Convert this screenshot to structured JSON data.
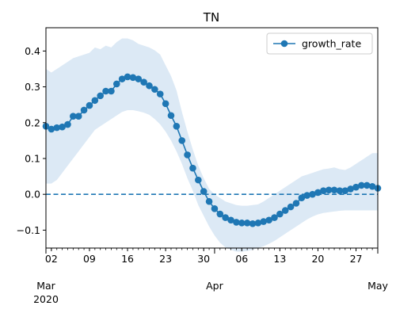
{
  "chart_data": {
    "type": "line",
    "title": "TN",
    "xlabel": "",
    "ylabel": "",
    "xlim": [
      "2020-03-01",
      "2020-05-01"
    ],
    "ylim": [
      -0.15,
      0.465
    ],
    "yticks": [
      -0.1,
      0.0,
      0.1,
      0.2,
      0.3,
      0.4
    ],
    "ytick_labels": [
      "−0.1",
      "0.0",
      "0.1",
      "0.2",
      "0.3",
      "0.4"
    ],
    "xticks_minor": [
      {
        "date": "2020-03-02",
        "label": "02"
      },
      {
        "date": "2020-03-09",
        "label": "09"
      },
      {
        "date": "2020-03-16",
        "label": "16"
      },
      {
        "date": "2020-03-23",
        "label": "23"
      },
      {
        "date": "2020-03-30",
        "label": "30"
      },
      {
        "date": "2020-04-06",
        "label": "06"
      },
      {
        "date": "2020-04-13",
        "label": "13"
      },
      {
        "date": "2020-04-20",
        "label": "20"
      },
      {
        "date": "2020-04-27",
        "label": "27"
      }
    ],
    "xticks_major": [
      {
        "date": "2020-03-01",
        "label": "Mar",
        "sublabel": "2020"
      },
      {
        "date": "2020-04-01",
        "label": "Apr",
        "sublabel": ""
      },
      {
        "date": "2020-05-01",
        "label": "May",
        "sublabel": ""
      }
    ],
    "legend": {
      "position": "upper right",
      "entries": [
        "growth_rate"
      ]
    },
    "reference_line": {
      "y": 0.0,
      "style": "dashed"
    },
    "colors": {
      "line": "#1f77b4",
      "band": "#dce9f5"
    },
    "series": [
      {
        "name": "growth_rate",
        "x": [
          "2020-03-01",
          "2020-03-02",
          "2020-03-03",
          "2020-03-04",
          "2020-03-05",
          "2020-03-06",
          "2020-03-07",
          "2020-03-08",
          "2020-03-09",
          "2020-03-10",
          "2020-03-11",
          "2020-03-12",
          "2020-03-13",
          "2020-03-14",
          "2020-03-15",
          "2020-03-16",
          "2020-03-17",
          "2020-03-18",
          "2020-03-19",
          "2020-03-20",
          "2020-03-21",
          "2020-03-22",
          "2020-03-23",
          "2020-03-24",
          "2020-03-25",
          "2020-03-26",
          "2020-03-27",
          "2020-03-28",
          "2020-03-29",
          "2020-03-30",
          "2020-03-31",
          "2020-04-01",
          "2020-04-02",
          "2020-04-03",
          "2020-04-04",
          "2020-04-05",
          "2020-04-06",
          "2020-04-07",
          "2020-04-08",
          "2020-04-09",
          "2020-04-10",
          "2020-04-11",
          "2020-04-12",
          "2020-04-13",
          "2020-04-14",
          "2020-04-15",
          "2020-04-16",
          "2020-04-17",
          "2020-04-18",
          "2020-04-19",
          "2020-04-20",
          "2020-04-21",
          "2020-04-22",
          "2020-04-23",
          "2020-04-24",
          "2020-04-25",
          "2020-04-26",
          "2020-04-27",
          "2020-04-28",
          "2020-04-29",
          "2020-04-30",
          "2020-05-01"
        ],
        "y": [
          0.19,
          0.182,
          0.186,
          0.188,
          0.195,
          0.218,
          0.218,
          0.235,
          0.248,
          0.262,
          0.275,
          0.288,
          0.288,
          0.308,
          0.322,
          0.328,
          0.326,
          0.322,
          0.313,
          0.303,
          0.293,
          0.28,
          0.253,
          0.22,
          0.19,
          0.15,
          0.11,
          0.073,
          0.04,
          0.008,
          -0.02,
          -0.04,
          -0.055,
          -0.065,
          -0.072,
          -0.078,
          -0.08,
          -0.08,
          -0.082,
          -0.08,
          -0.076,
          -0.072,
          -0.065,
          -0.055,
          -0.045,
          -0.035,
          -0.025,
          -0.01,
          -0.003,
          0.0,
          0.005,
          0.01,
          0.012,
          0.012,
          0.01,
          0.01,
          0.015,
          0.02,
          0.025,
          0.025,
          0.022,
          0.017
        ],
        "lower": [
          0.03,
          0.03,
          0.04,
          0.06,
          0.08,
          0.1,
          0.12,
          0.14,
          0.16,
          0.18,
          0.19,
          0.2,
          0.21,
          0.22,
          0.23,
          0.235,
          0.235,
          0.232,
          0.228,
          0.222,
          0.21,
          0.195,
          0.175,
          0.15,
          0.12,
          0.085,
          0.045,
          0.01,
          -0.03,
          -0.06,
          -0.09,
          -0.115,
          -0.135,
          -0.148,
          -0.155,
          -0.16,
          -0.16,
          -0.158,
          -0.155,
          -0.15,
          -0.145,
          -0.138,
          -0.13,
          -0.12,
          -0.11,
          -0.1,
          -0.09,
          -0.08,
          -0.07,
          -0.062,
          -0.056,
          -0.052,
          -0.05,
          -0.048,
          -0.046,
          -0.045,
          -0.045,
          -0.045,
          -0.045,
          -0.045,
          -0.045,
          -0.045
        ],
        "upper": [
          0.35,
          0.34,
          0.35,
          0.36,
          0.37,
          0.38,
          0.385,
          0.39,
          0.395,
          0.41,
          0.405,
          0.415,
          0.41,
          0.425,
          0.435,
          0.435,
          0.43,
          0.42,
          0.415,
          0.41,
          0.402,
          0.39,
          0.36,
          0.33,
          0.29,
          0.23,
          0.175,
          0.125,
          0.08,
          0.045,
          0.015,
          0.0,
          -0.01,
          -0.02,
          -0.025,
          -0.03,
          -0.032,
          -0.032,
          -0.03,
          -0.028,
          -0.02,
          -0.01,
          0.0,
          0.01,
          0.02,
          0.03,
          0.04,
          0.05,
          0.055,
          0.06,
          0.065,
          0.07,
          0.072,
          0.075,
          0.07,
          0.068,
          0.075,
          0.085,
          0.095,
          0.105,
          0.115,
          0.115
        ]
      }
    ]
  }
}
